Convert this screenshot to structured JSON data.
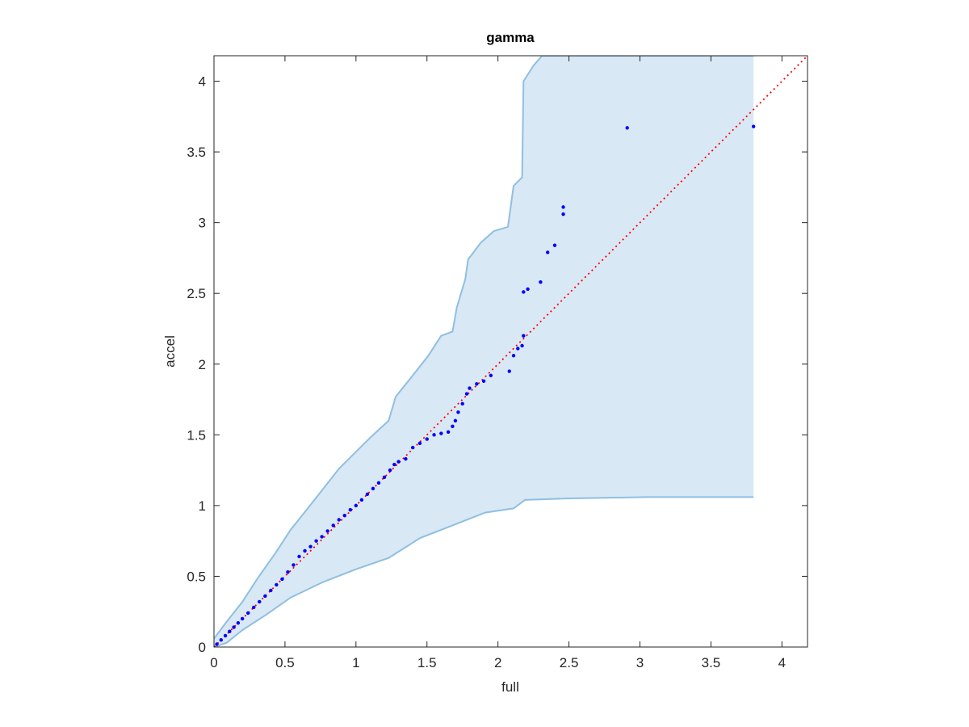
{
  "chart_data": {
    "type": "scatter",
    "title": "gamma",
    "x_label": "full",
    "y_label": "accel",
    "xlim": [
      0,
      4.18
    ],
    "ylim": [
      0,
      4.18
    ],
    "xticks": [
      0,
      0.5,
      1,
      1.5,
      2,
      2.5,
      3,
      3.5,
      4
    ],
    "yticks": [
      0,
      0.5,
      1,
      1.5,
      2,
      2.5,
      3,
      3.5,
      4
    ],
    "band": {
      "color": "#d9e8f5",
      "edge_color": "#8fbfe0",
      "upper": {
        "x": [
          0,
          0.09,
          0.2,
          0.31,
          0.43,
          0.54,
          0.66,
          0.77,
          0.88,
          1.0,
          1.11,
          1.23,
          1.28,
          1.4,
          1.51,
          1.6,
          1.68,
          1.71,
          1.77,
          1.79,
          1.88,
          1.97,
          2.07,
          2.11,
          2.17,
          2.18,
          2.25,
          2.31,
          3.8
        ],
        "values": [
          0.06,
          0.18,
          0.32,
          0.49,
          0.66,
          0.83,
          0.98,
          1.12,
          1.26,
          1.38,
          1.49,
          1.6,
          1.77,
          1.92,
          2.06,
          2.2,
          2.23,
          2.4,
          2.6,
          2.74,
          2.86,
          2.94,
          2.97,
          3.26,
          3.32,
          4.0,
          4.11,
          4.18,
          4.18
        ]
      },
      "lower": {
        "x": [
          0,
          0.09,
          0.2,
          0.37,
          0.54,
          0.77,
          1.0,
          1.23,
          1.45,
          1.68,
          1.91,
          2.11,
          2.19,
          2.48,
          3.05,
          3.8
        ],
        "values": [
          0,
          0.03,
          0.12,
          0.23,
          0.35,
          0.46,
          0.55,
          0.63,
          0.77,
          0.86,
          0.95,
          0.98,
          1.04,
          1.05,
          1.06,
          1.06
        ]
      }
    },
    "reference_line": {
      "color": "#ff0000",
      "x": [
        0,
        4.18
      ],
      "values": [
        0,
        4.18
      ]
    },
    "series": [
      {
        "color": "#0000ff",
        "x": [
          0.02,
          0.05,
          0.08,
          0.11,
          0.14,
          0.17,
          0.2,
          0.24,
          0.28,
          0.32,
          0.36,
          0.4,
          0.44,
          0.48,
          0.52,
          0.56,
          0.6,
          0.64,
          0.68,
          0.72,
          0.76,
          0.8,
          0.84,
          0.88,
          0.92,
          0.96,
          1.0,
          1.04,
          1.08,
          1.12,
          1.16,
          1.2,
          1.24,
          1.27,
          1.3,
          1.35,
          1.4,
          1.45,
          1.5,
          1.55,
          1.6,
          1.65,
          1.68,
          1.7,
          1.72,
          1.75,
          1.78,
          1.8,
          1.85,
          1.9,
          1.95,
          2.08,
          2.11,
          2.14,
          2.17,
          2.18,
          2.18,
          2.21,
          2.3,
          2.35,
          2.4,
          2.46,
          2.46,
          2.91,
          3.8
        ],
        "values": [
          0.02,
          0.05,
          0.08,
          0.11,
          0.14,
          0.17,
          0.2,
          0.24,
          0.28,
          0.32,
          0.36,
          0.4,
          0.44,
          0.48,
          0.53,
          0.58,
          0.64,
          0.68,
          0.71,
          0.75,
          0.78,
          0.82,
          0.86,
          0.9,
          0.93,
          0.97,
          1.0,
          1.04,
          1.08,
          1.12,
          1.16,
          1.2,
          1.25,
          1.29,
          1.31,
          1.33,
          1.41,
          1.44,
          1.47,
          1.5,
          1.51,
          1.52,
          1.56,
          1.6,
          1.66,
          1.72,
          1.79,
          1.83,
          1.86,
          1.88,
          1.92,
          1.95,
          2.06,
          2.11,
          2.13,
          2.2,
          2.51,
          2.53,
          2.58,
          2.79,
          2.84,
          3.06,
          3.11,
          3.67,
          3.68
        ]
      }
    ]
  }
}
